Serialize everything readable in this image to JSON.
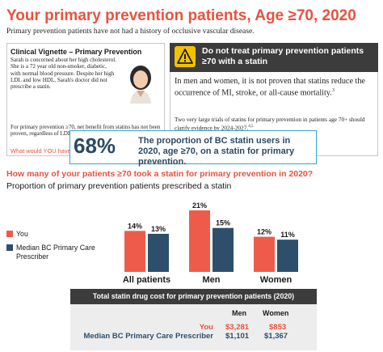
{
  "header": {
    "title": "Your primary prevention patients, Age ≥70, 2020",
    "subtitle": "Primary prevention patients have not had a history of occlusive vascular disease."
  },
  "vignette": {
    "title": "Clinical Vignette – Primary Prevention",
    "text_wrapped": "Sarah is concerned about her high cholesterol. She is a 72 year old non-smoker, diabetic, with normal blood pressure. Despite her high LDL and low HDL, Sarah's doctor did not prescribe a statin.",
    "text_full": "For primary prevention ≥70, net benefit from statins has not been proven, regardless of LDL.",
    "question": "What would YOU have done?"
  },
  "warning": {
    "heading": "Do not treat primary prevention patients ≥70 with a statin",
    "main": "In men and women, it is not proven that statins reduce the occurrence of MI, stroke, or all-cause mortality.",
    "main_sup": "3",
    "small": "Two very large trials of statins for primary prevention in patients age 70+ should clarify evidence by 2024-2027.",
    "small_sup": "4,5"
  },
  "stat": {
    "number": "68%",
    "text": "The proportion of BC statin users in 2020, age ≥70, on a statin for primary prevention."
  },
  "question": "How many of your patients ≥70 took a statin for primary prevention in 2020?",
  "chart_title": "Proportion of primary prevention patients prescribed a statin",
  "legend": {
    "you": "You",
    "median": "Median BC Primary Care Prescriber"
  },
  "colors": {
    "you": "#ef5b4b",
    "median": "#2d4f6b",
    "accent": "#e8523f",
    "stat_border": "#34a7c9",
    "dark_box": "#3c3c3c"
  },
  "chart_data": {
    "type": "bar",
    "categories": [
      "All patients",
      "Men",
      "Women"
    ],
    "series": [
      {
        "name": "You",
        "values": [
          14,
          21,
          12
        ],
        "labels": [
          "14%",
          "21%",
          "12%"
        ]
      },
      {
        "name": "Median BC Primary Care Prescriber",
        "values": [
          13,
          15,
          11
        ],
        "labels": [
          "13%",
          "15%",
          "11%"
        ]
      }
    ],
    "ylim": [
      0,
      21
    ],
    "grid": false,
    "legend": "left"
  },
  "cost_table": {
    "title": "Total statin drug cost for primary prevention patients (2020)",
    "columns": [
      "Men",
      "Women"
    ],
    "rows": [
      {
        "label": "You",
        "values": [
          "$3,281",
          "$853"
        ]
      },
      {
        "label": "Median BC Primary Care Prescriber",
        "values": [
          "$1,101",
          "$1,367"
        ]
      }
    ]
  }
}
